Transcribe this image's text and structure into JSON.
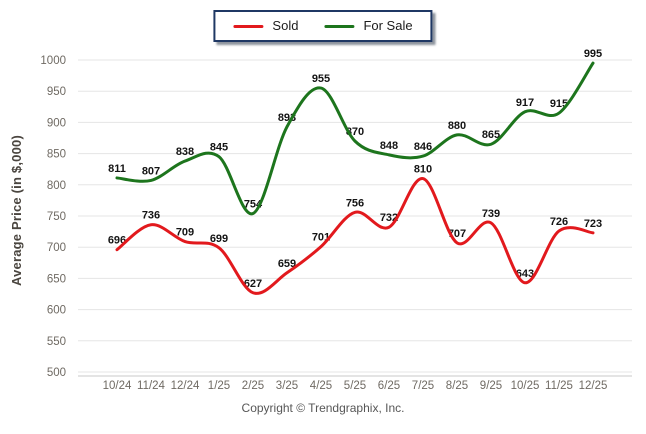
{
  "chart_data": {
    "type": "line",
    "title": "",
    "xlabel": "",
    "ylabel": "Average Price (in $,000)",
    "categories": [
      "10/24",
      "11/24",
      "12/24",
      "1/25",
      "2/25",
      "3/25",
      "4/25",
      "5/25",
      "6/25",
      "7/25",
      "8/25",
      "9/25",
      "10/25",
      "11/25",
      "12/25"
    ],
    "series": [
      {
        "name": "Sold",
        "color": "#e2191d",
        "values": [
          696,
          736,
          709,
          699,
          627,
          659,
          701,
          756,
          732,
          810,
          707,
          739,
          643,
          726,
          723
        ]
      },
      {
        "name": "For Sale",
        "color": "#1d751d",
        "values": [
          811,
          807,
          838,
          845,
          754,
          893,
          955,
          870,
          848,
          846,
          880,
          865,
          917,
          915,
          995
        ]
      }
    ],
    "ylim": [
      500,
      1000
    ],
    "ytick_step": 50,
    "grid": "horizontal",
    "legend_position": "top-center",
    "smooth": true,
    "point_labels": true
  },
  "footer": {
    "copyright": "Copyright © Trendgraphix, Inc."
  }
}
